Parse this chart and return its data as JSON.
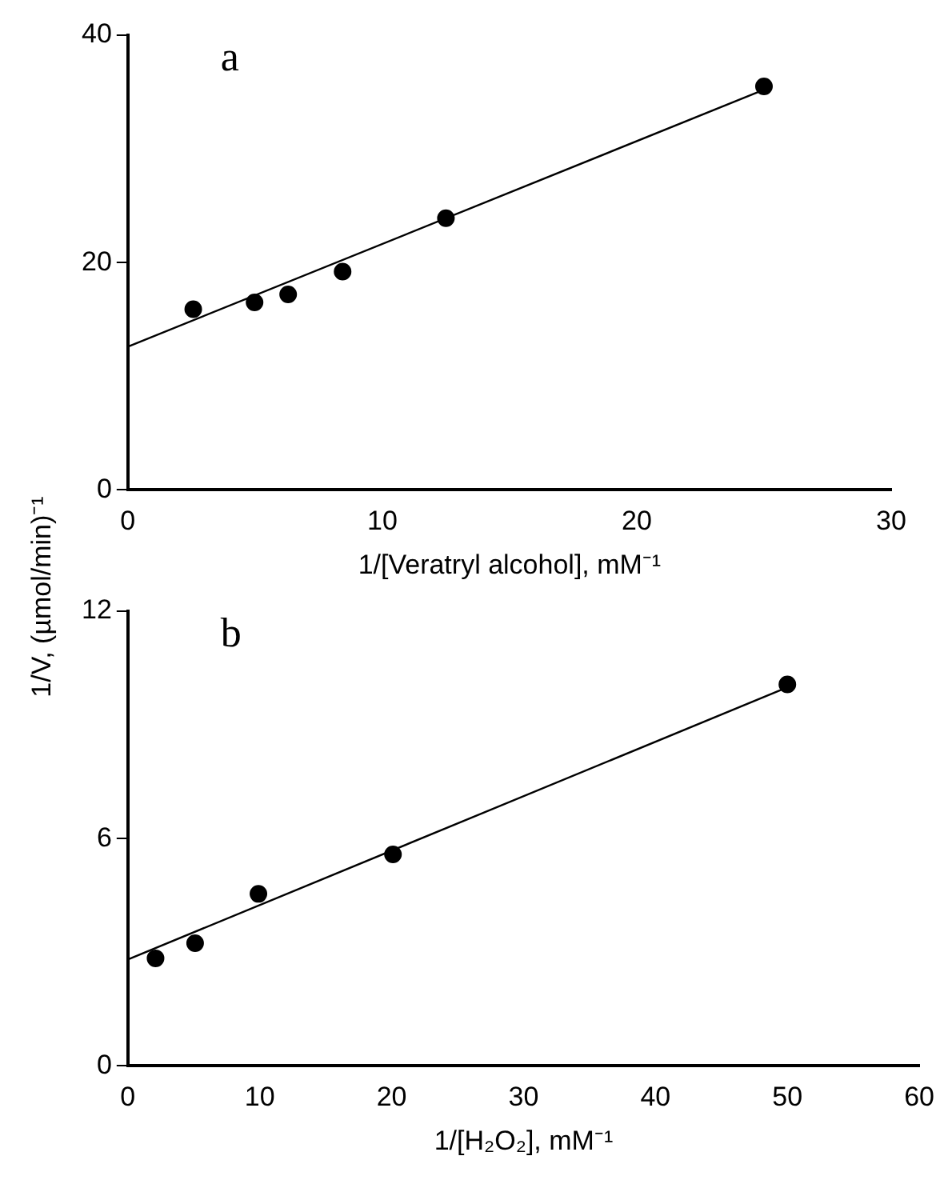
{
  "chart_data": [
    {
      "type": "scatter",
      "title": "a",
      "xlabel": "1/[Veratryl alcohol], mM⁻¹",
      "ylabel": "1/V, (µmol/min)⁻¹",
      "xlim": [
        0,
        30
      ],
      "xticks": [
        0,
        10,
        20,
        30
      ],
      "ylim": [
        0,
        40
      ],
      "yticks": [
        0,
        20,
        40
      ],
      "series": [
        {
          "type": "scatter",
          "marker": "circle",
          "color": "#000000",
          "x": [
            2.57,
            4.98,
            6.3,
            8.44,
            12.5,
            25.0
          ],
          "values": [
            15.9,
            16.5,
            17.2,
            19.2,
            23.9,
            35.5
          ]
        },
        {
          "type": "line",
          "marker": "none",
          "color": "#000000",
          "x": [
            0,
            25
          ],
          "values": [
            12.6,
            35.2
          ]
        }
      ]
    },
    {
      "type": "scatter",
      "title": "b",
      "xlabel": "1/[H₂O₂], mM⁻¹",
      "xlim": [
        0,
        60
      ],
      "xticks": [
        0,
        10,
        20,
        30,
        40,
        50,
        60
      ],
      "ylim": [
        0,
        12
      ],
      "yticks": [
        0,
        6,
        12
      ],
      "series": [
        {
          "type": "scatter",
          "marker": "circle",
          "color": "#000000",
          "x": [
            2.1,
            5.1,
            9.9,
            20.1,
            50.0
          ],
          "values": [
            2.84,
            3.24,
            4.54,
            5.58,
            10.07
          ]
        },
        {
          "type": "line",
          "marker": "none",
          "color": "#000000",
          "x": [
            0,
            50
          ],
          "values": [
            2.81,
            9.99
          ]
        }
      ]
    }
  ]
}
